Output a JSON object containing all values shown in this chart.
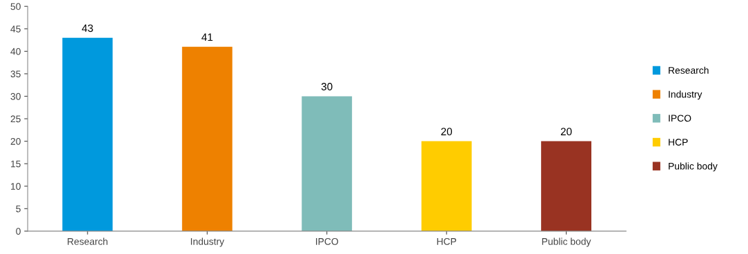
{
  "chart_data": {
    "type": "bar",
    "categories": [
      "Research",
      "Industry",
      "IPCO",
      "HCP",
      "Public body"
    ],
    "series": [
      {
        "name": "Research",
        "color": "#0099dd",
        "values": [
          43,
          null,
          null,
          null,
          null
        ]
      },
      {
        "name": "Industry",
        "color": "#ee8100",
        "values": [
          null,
          41,
          null,
          null,
          null
        ]
      },
      {
        "name": "IPCO",
        "color": "#7fbcb9",
        "values": [
          null,
          null,
          30,
          null,
          null
        ]
      },
      {
        "name": "HCP",
        "color": "#ffcc00",
        "values": [
          null,
          null,
          null,
          20,
          null
        ]
      },
      {
        "name": "Public body",
        "color": "#993322",
        "values": [
          null,
          null,
          null,
          null,
          20
        ]
      }
    ],
    "ylim": [
      0,
      50
    ],
    "yticks": [
      0,
      5,
      10,
      15,
      20,
      25,
      30,
      35,
      40,
      45,
      50
    ],
    "data_labels": true,
    "grid": false,
    "legend": "right"
  }
}
